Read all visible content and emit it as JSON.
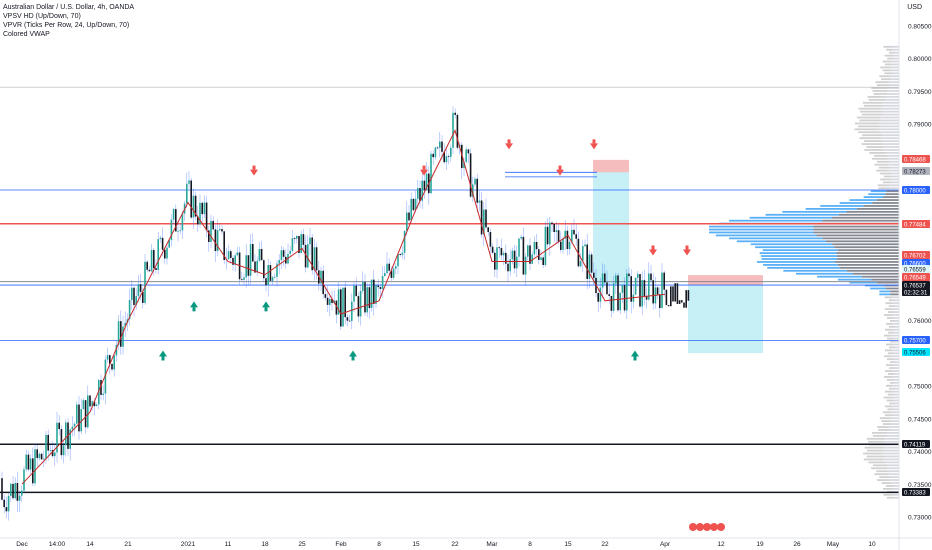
{
  "legend": {
    "symbol": "Australian Dollar / U.S. Dollar, 4h, OANDA",
    "ind1": "VPSV HD (Up/Down, 70)",
    "ind2": "VPVR (Ticks Per Row, 24, Up/Down, 70)",
    "ind3": "Colored VWAP"
  },
  "currency": "USD",
  "axis": {
    "yticks": [
      "0.80500",
      "0.80000",
      "0.79500",
      "0.79000",
      "0.76000",
      "0.75000",
      "0.74500",
      "0.74000",
      "0.73500",
      "0.73000"
    ],
    "xticks": [
      "Dec",
      "14:00",
      "14",
      "21",
      "2021",
      "11",
      "18",
      "25",
      "Feb",
      "8",
      "15",
      "22",
      "Mar",
      "8",
      "15",
      "22",
      "Apr",
      "12",
      "19",
      "26",
      "May",
      "10"
    ]
  },
  "levels": [
    {
      "label": "0.78468",
      "color": "#ef5350",
      "text": "#ffffff"
    },
    {
      "label": "0.78273",
      "color": "#b2b5be",
      "text": "#131722"
    },
    {
      "label": "0.78000",
      "color": "#2962ff",
      "text": "#ffffff"
    },
    {
      "label": "0.77484",
      "color": "#ef5350",
      "text": "#ffffff"
    },
    {
      "label": "0.76702",
      "color": "#ef5350",
      "text": "#ffffff"
    },
    {
      "label": "0.76600",
      "color": "#2962ff",
      "text": "#ffffff"
    },
    {
      "label": "0.76559",
      "color": "#e0f7fa",
      "text": "#131722"
    },
    {
      "label": "0.76549",
      "color": "#ef5350",
      "text": "#ffffff"
    },
    {
      "label": "0.76537",
      "color": "#131722",
      "text": "#ffffff"
    },
    {
      "label": "02:32:31",
      "color": "#131722",
      "text": "#ffffff"
    },
    {
      "label": "0.75700",
      "color": "#2962ff",
      "text": "#ffffff"
    },
    {
      "label": "0.75506",
      "color": "#00e5ff",
      "text": "#131722"
    },
    {
      "label": "0.74119",
      "color": "#131722",
      "text": "#ffffff"
    },
    {
      "label": "0.73383",
      "color": "#131722",
      "text": "#ffffff"
    }
  ],
  "chart_data": {
    "type": "candlestick",
    "title": "Australian Dollar / U.S. Dollar, 4h, OANDA",
    "ylim": [
      0.7292,
      0.8078
    ],
    "close_path": [
      [
        "Dec",
        0.736
      ],
      [
        "14",
        0.747
      ],
      [
        "21",
        0.761
      ],
      [
        "2021",
        0.779
      ],
      [
        "11",
        0.77
      ],
      [
        "18",
        0.768
      ],
      [
        "25",
        0.772
      ],
      [
        "Feb",
        0.762
      ],
      [
        "8",
        0.764
      ],
      [
        "15",
        0.778
      ],
      [
        "22",
        0.79
      ],
      [
        "Mar",
        0.77
      ],
      [
        "8",
        0.77
      ],
      [
        "15",
        0.774
      ],
      [
        "22",
        0.764
      ],
      [
        "Apr",
        0.765
      ]
    ],
    "horizontal_lines": [
      0.78,
      0.77484,
      0.766,
      0.76549,
      0.757,
      0.74119,
      0.73383
    ],
    "markers_down": 9,
    "markers_up": 6
  }
}
